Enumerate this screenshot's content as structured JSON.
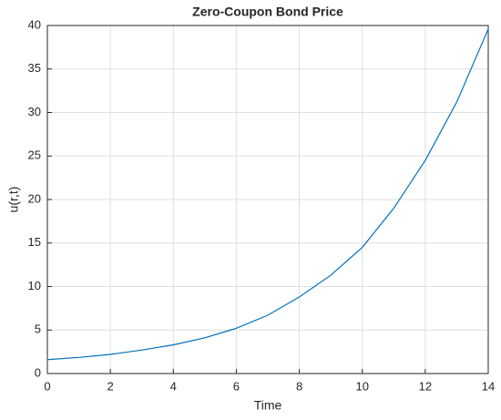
{
  "chart_data": {
    "type": "line",
    "title": "Zero-Coupon Bond Price",
    "x_label": "Time",
    "y_label": "u(r,t)",
    "x": [
      0,
      1,
      2,
      3,
      4,
      5,
      6,
      7,
      8,
      9,
      10,
      11,
      12,
      13,
      14
    ],
    "series": [
      {
        "color": "#0072bd",
        "values": [
          1.6,
          1.85,
          2.2,
          2.7,
          3.3,
          4.1,
          5.2,
          6.7,
          8.8,
          11.3,
          14.5,
          19,
          24.5,
          31.2,
          39.6
        ]
      }
    ],
    "xlim": [
      0,
      14
    ],
    "xticks": [
      0,
      2,
      4,
      6,
      8,
      10,
      12,
      14
    ],
    "ylim": [
      0,
      40
    ],
    "yticks": [
      0,
      5,
      10,
      15,
      20,
      25,
      30,
      35,
      40
    ],
    "grid": true
  }
}
